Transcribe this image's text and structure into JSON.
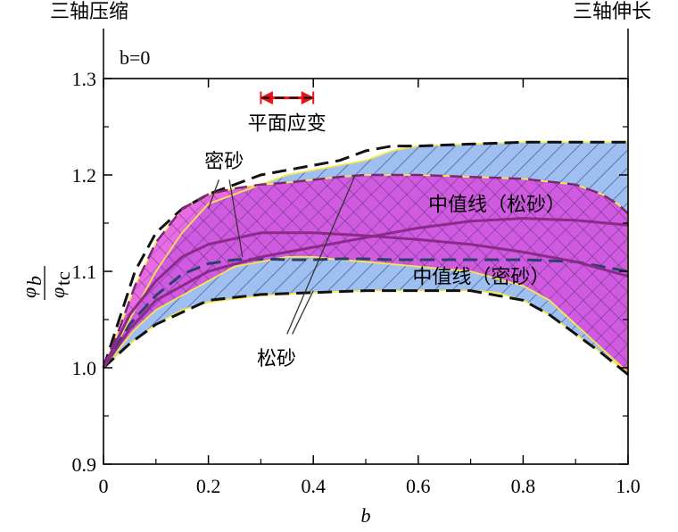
{
  "chart_data": {
    "type": "area",
    "xlabel": "b",
    "ylabel_num": "φ",
    "ylabel_num_sub": "b",
    "ylabel_den": "φ",
    "ylabel_den_sub": "tc",
    "xlim": [
      0,
      1.0
    ],
    "ylim": [
      0.9,
      1.3
    ],
    "xticks": [
      0,
      0.2,
      0.4,
      0.6,
      0.8,
      1.0
    ],
    "xtick_labels": [
      "0",
      "0.2",
      "0.4",
      "0.6",
      "0.8",
      "1.0"
    ],
    "yticks": [
      0.9,
      1.0,
      1.1,
      1.2,
      1.3
    ],
    "ytick_labels": [
      "0.9",
      "1.0",
      "1.1",
      "1.2",
      "1.3"
    ],
    "grid": false,
    "top_left_label": "三轴压缩",
    "top_right_label": "三轴伸长",
    "inner_label": "b=0",
    "annotations": {
      "plane_strain": {
        "text": "平面应变",
        "range": [
          0.3,
          0.4
        ],
        "y": 1.28,
        "color": "#e8141b"
      },
      "dense": {
        "text": "密砂",
        "x": 0.23,
        "y": 1.215
      },
      "loose": {
        "text": "松砂",
        "x": 0.33,
        "y": 1.01
      },
      "median_loose": {
        "text": "中值线（松砂）",
        "x": 0.75,
        "y": 1.17
      },
      "median_dense": {
        "text": "中值线（密砂）",
        "x": 0.72,
        "y": 1.095
      }
    },
    "series": [
      {
        "key": "dense",
        "fill": "#e23ad9",
        "upper": {
          "x": [
            0,
            0.03,
            0.06,
            0.1,
            0.15,
            0.2,
            0.25,
            0.3,
            0.35,
            0.4,
            0.45,
            0.5,
            0.55,
            0.6,
            0.7,
            0.8,
            0.9,
            0.95,
            0.98,
            1.0
          ],
          "y": [
            1.0,
            1.04,
            1.085,
            1.13,
            1.165,
            1.18,
            1.186,
            1.19,
            1.192,
            1.195,
            1.198,
            1.2,
            1.2,
            1.2,
            1.198,
            1.196,
            1.19,
            1.18,
            1.17,
            1.16
          ]
        },
        "lower": {
          "x": [
            0,
            0.03,
            0.06,
            0.1,
            0.15,
            0.2,
            0.25,
            0.3,
            0.35,
            0.4,
            0.45,
            0.5,
            0.6,
            0.7,
            0.8,
            0.85,
            0.9,
            0.95,
            0.98,
            1.0
          ],
          "y": [
            1.0,
            1.02,
            1.04,
            1.06,
            1.075,
            1.09,
            1.105,
            1.11,
            1.115,
            1.115,
            1.112,
            1.11,
            1.105,
            1.1,
            1.085,
            1.07,
            1.045,
            1.02,
            1.005,
            0.995
          ]
        },
        "median": {
          "x": [
            0,
            0.05,
            0.1,
            0.15,
            0.2,
            0.3,
            0.4,
            0.5,
            0.6,
            0.7,
            0.8,
            0.9,
            1.0
          ],
          "y": [
            1.0,
            1.055,
            1.09,
            1.115,
            1.128,
            1.14,
            1.14,
            1.137,
            1.133,
            1.128,
            1.12,
            1.11,
            1.095
          ]
        }
      },
      {
        "key": "loose",
        "fill": "#8fb4ee",
        "upper": {
          "x": [
            0,
            0.05,
            0.1,
            0.15,
            0.2,
            0.25,
            0.3,
            0.35,
            0.4,
            0.45,
            0.5,
            0.55,
            0.6,
            0.7,
            0.8,
            0.9,
            0.95,
            1.0
          ],
          "y": [
            1.0,
            1.045,
            1.075,
            1.097,
            1.108,
            1.112,
            1.113,
            1.112,
            1.112,
            1.113,
            1.113,
            1.112,
            1.112,
            1.112,
            1.112,
            1.11,
            1.105,
            1.1
          ],
          "upper2": [
            1.0,
            1.05,
            1.1,
            1.14,
            1.17,
            1.18,
            1.19,
            1.2,
            1.205,
            1.21,
            1.215,
            1.225,
            1.23,
            1.232,
            1.234,
            1.234,
            1.234,
            1.234
          ]
        },
        "lower": {
          "x": [
            0,
            0.05,
            0.1,
            0.15,
            0.2,
            0.3,
            0.4,
            0.5,
            0.6,
            0.7,
            0.75,
            0.8,
            0.85,
            0.9,
            0.95,
            1.0
          ],
          "y": [
            1.0,
            1.025,
            1.045,
            1.06,
            1.068,
            1.075,
            1.078,
            1.08,
            1.08,
            1.08,
            1.078,
            1.07,
            1.055,
            1.035,
            1.015,
            0.995
          ]
        },
        "median": {
          "x": [
            0,
            0.05,
            0.1,
            0.2,
            0.3,
            0.4,
            0.5,
            0.6,
            0.7,
            0.8,
            0.9,
            1.0
          ],
          "y": [
            1.0,
            1.04,
            1.07,
            1.1,
            1.115,
            1.125,
            1.135,
            1.145,
            1.152,
            1.155,
            1.153,
            1.148
          ]
        }
      }
    ],
    "envelope": {
      "outer": {
        "x": [
          0,
          0.03,
          0.06,
          0.1,
          0.15,
          0.2,
          0.25,
          0.3,
          0.35,
          0.4,
          0.45,
          0.5,
          0.55,
          0.6,
          0.7,
          0.8,
          0.9,
          1.0
        ],
        "y": [
          1.0,
          1.05,
          1.1,
          1.14,
          1.165,
          1.18,
          1.19,
          1.2,
          1.205,
          1.21,
          1.215,
          1.225,
          1.23,
          1.23,
          1.232,
          1.234,
          1.234,
          1.234
        ]
      },
      "inner": {
        "x": [
          0,
          0.05,
          0.1,
          0.2,
          0.3,
          0.4,
          0.5,
          0.6,
          0.7,
          0.8,
          0.85,
          0.9,
          0.95,
          1.0
        ],
        "y": [
          1.0,
          1.025,
          1.045,
          1.07,
          1.076,
          1.078,
          1.08,
          1.08,
          1.08,
          1.07,
          1.055,
          1.035,
          1.015,
          0.993
        ]
      }
    }
  }
}
